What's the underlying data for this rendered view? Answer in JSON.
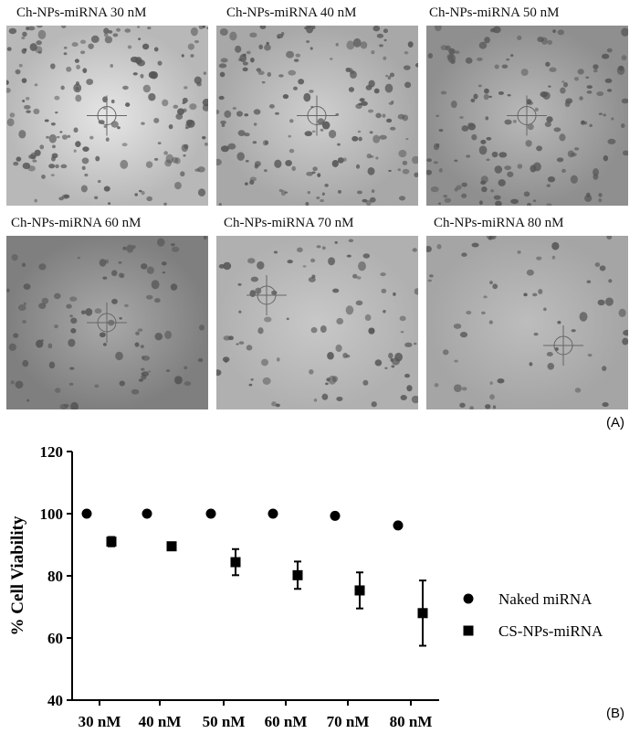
{
  "panel_a": {
    "label": "(A)",
    "images": [
      {
        "caption": "Ch-NPs-miRNA 30 nM"
      },
      {
        "caption": "Ch-NPs-miRNA 40 nM"
      },
      {
        "caption": "Ch-NPs-miRNA 50 nM"
      },
      {
        "caption": "Ch-NPs-miRNA 60 nM"
      },
      {
        "caption": "Ch-NPs-miRNA 70 nM"
      },
      {
        "caption": "Ch-NPs-miRNA 80 nM"
      }
    ]
  },
  "panel_b": {
    "label": "(B)"
  },
  "chart_data": {
    "type": "scatter",
    "ylabel": "% Cell Viability",
    "xlabel": "",
    "categories": [
      "30 nM",
      "40 nM",
      "50 nM",
      "60 nM",
      "70 nM",
      "80 nM"
    ],
    "ylim": [
      40,
      120
    ],
    "yticks": [
      40,
      60,
      80,
      100,
      120
    ],
    "grid": false,
    "legend": "right",
    "series": [
      {
        "name": "Naked miRNA",
        "marker": "circle",
        "values": [
          100,
          100,
          100,
          100,
          99.3,
          96.2
        ],
        "err": [
          0.5,
          0.3,
          0.3,
          0.5,
          0.8,
          0.8
        ]
      },
      {
        "name": "CS-NPs-miRNA",
        "marker": "square",
        "values": [
          91,
          89.5,
          84.4,
          80.2,
          75.3,
          68
        ],
        "err": [
          1.5,
          0.5,
          4.2,
          4.4,
          5.8,
          10.5
        ]
      }
    ]
  }
}
